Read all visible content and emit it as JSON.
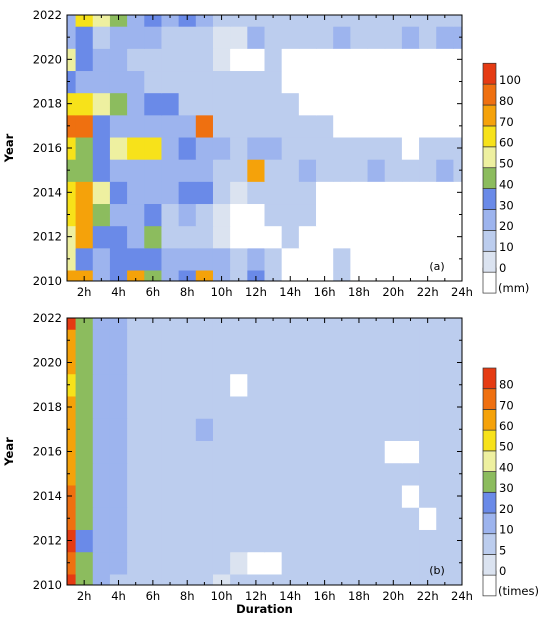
{
  "chart_data": [
    {
      "type": "heatmap",
      "panel_label": "(a)",
      "y_title": "Year",
      "x_ticks": [
        "2h",
        "4h",
        "6h",
        "8h",
        "10h",
        "12h",
        "14h",
        "16h",
        "18h",
        "20h",
        "22h",
        "24h"
      ],
      "y_ticks": [
        "2010",
        "2012",
        "2014",
        "2016",
        "2018",
        "2020",
        "2022"
      ],
      "x_range": [
        1,
        24
      ],
      "y_range": [
        2010,
        2022
      ],
      "colorbar_unit": "(mm)",
      "colorbar_labels": [
        "0",
        "10",
        "20",
        "30",
        "40",
        "50",
        "60",
        "70",
        "80",
        "100"
      ],
      "levels": [
        0,
        10,
        20,
        30,
        40,
        50,
        60,
        70,
        80,
        100
      ],
      "colors": [
        "#ffffff",
        "#dbe3f0",
        "#bccdee",
        "#9db4ee",
        "#6a8ae8",
        "#8cbc5e",
        "#eef0a0",
        "#f7e21a",
        "#f5a20a",
        "#ef7010",
        "#e53b13"
      ],
      "values": [
        [
          78,
          72,
          30,
          40,
          76,
          42,
          22,
          35,
          74,
          30,
          20,
          40,
          12,
          0,
          0,
          0,
          15,
          0,
          0,
          0,
          0,
          0,
          0,
          0
        ],
        [
          56,
          36,
          24,
          36,
          36,
          34,
          22,
          28,
          30,
          24,
          14,
          22,
          14,
          0,
          0,
          0,
          15,
          0,
          0,
          0,
          0,
          0,
          0,
          0
        ],
        [
          60,
          72,
          38,
          32,
          30,
          50,
          12,
          16,
          14,
          10,
          0,
          0,
          0,
          15,
          0,
          0,
          0,
          0,
          0,
          0,
          0,
          0,
          0,
          0
        ],
        [
          68,
          80,
          46,
          30,
          28,
          32,
          18,
          26,
          12,
          10,
          0,
          0,
          15,
          12,
          12,
          0,
          0,
          0,
          0,
          0,
          0,
          0,
          0,
          0
        ],
        [
          70,
          78,
          60,
          32,
          26,
          30,
          24,
          32,
          40,
          14,
          8,
          12,
          15,
          12,
          12,
          0,
          0,
          0,
          0,
          0,
          0,
          0,
          0,
          0
        ],
        [
          50,
          48,
          32,
          30,
          24,
          24,
          30,
          28,
          22,
          16,
          12,
          75,
          18,
          12,
          26,
          15,
          12,
          15,
          22,
          12,
          12,
          15,
          22,
          15
        ],
        [
          65,
          48,
          38,
          55,
          65,
          62,
          30,
          32,
          24,
          30,
          15,
          22,
          26,
          12,
          15,
          15,
          12,
          12,
          15,
          12,
          0,
          15,
          15,
          15
        ],
        [
          100,
          82,
          40,
          30,
          26,
          30,
          26,
          30,
          82,
          16,
          12,
          12,
          14,
          12,
          12,
          14,
          0,
          0,
          0,
          0,
          0,
          0,
          0,
          0
        ],
        [
          70,
          62,
          58,
          44,
          28,
          32,
          32,
          20,
          16,
          12,
          12,
          12,
          12,
          12,
          0,
          0,
          0,
          0,
          0,
          0,
          0,
          0,
          0,
          0
        ],
        [
          40,
          28,
          30,
          28,
          26,
          20,
          18,
          14,
          12,
          12,
          12,
          12,
          12,
          0,
          0,
          0,
          0,
          0,
          0,
          0,
          0,
          0,
          0,
          0
        ],
        [
          60,
          35,
          25,
          26,
          20,
          14,
          12,
          12,
          14,
          10,
          0,
          0,
          12,
          0,
          0,
          0,
          0,
          0,
          0,
          0,
          0,
          0,
          0,
          0
        ],
        [
          30,
          40,
          20,
          24,
          26,
          22,
          18,
          14,
          12,
          10,
          10,
          26,
          12,
          12,
          12,
          12,
          30,
          12,
          12,
          12,
          26,
          12,
          30,
          26
        ],
        [
          28,
          62,
          56,
          42,
          24,
          34,
          22,
          38,
          22,
          12,
          12,
          12,
          12,
          12,
          12,
          12,
          12,
          12,
          12,
          12,
          12,
          12,
          12,
          12
        ]
      ]
    },
    {
      "type": "heatmap",
      "panel_label": "(b)",
      "y_title": "Year",
      "x_title": "Duration",
      "x_ticks": [
        "2h",
        "4h",
        "6h",
        "8h",
        "10h",
        "12h",
        "14h",
        "16h",
        "18h",
        "20h",
        "22h",
        "24h"
      ],
      "y_ticks": [
        "2010",
        "2012",
        "2014",
        "2016",
        "2018",
        "2020",
        "2022"
      ],
      "x_range": [
        1,
        24
      ],
      "y_range": [
        2010,
        2022
      ],
      "colorbar_unit": "(times)",
      "colorbar_labels": [
        "0",
        "5",
        "10",
        "20",
        "30",
        "40",
        "50",
        "60",
        "70",
        "80"
      ],
      "levels": [
        0,
        5,
        10,
        20,
        30,
        40,
        50,
        60,
        70,
        80
      ],
      "colors": [
        "#ffffff",
        "#dbe3f0",
        "#bccdee",
        "#9db4ee",
        "#6a8ae8",
        "#8cbc5e",
        "#eef0a0",
        "#f7e21a",
        "#f5a20a",
        "#ef7010",
        "#e53b13"
      ],
      "values": [
        [
          85,
          36,
          14,
          10,
          7,
          7,
          7,
          6,
          7,
          5,
          6,
          6,
          6,
          6,
          6,
          6,
          6,
          6,
          6,
          6,
          6,
          6,
          6,
          6
        ],
        [
          74,
          32,
          16,
          12,
          8,
          6,
          6,
          6,
          6,
          6,
          5,
          0,
          0,
          6,
          6,
          6,
          6,
          6,
          6,
          6,
          6,
          6,
          6,
          6
        ],
        [
          90,
          30,
          16,
          12,
          9,
          7,
          6,
          6,
          6,
          6,
          6,
          6,
          6,
          6,
          6,
          6,
          6,
          6,
          6,
          6,
          6,
          6,
          6,
          6
        ],
        [
          75,
          34,
          18,
          12,
          10,
          7,
          6,
          6,
          6,
          6,
          6,
          6,
          6,
          6,
          6,
          6,
          6,
          6,
          6,
          6,
          6,
          0,
          6,
          6
        ],
        [
          72,
          36,
          16,
          12,
          10,
          6,
          6,
          6,
          6,
          6,
          6,
          6,
          6,
          6,
          6,
          6,
          6,
          6,
          6,
          6,
          0,
          6,
          6,
          6
        ],
        [
          65,
          38,
          18,
          13,
          10,
          8,
          6,
          6,
          6,
          6,
          6,
          6,
          6,
          6,
          6,
          6,
          6,
          6,
          6,
          6,
          6,
          6,
          6,
          6
        ],
        [
          68,
          40,
          16,
          12,
          10,
          7,
          6,
          6,
          6,
          6,
          6,
          6,
          6,
          6,
          6,
          6,
          6,
          6,
          6,
          0,
          0,
          6,
          6,
          6
        ],
        [
          66,
          36,
          16,
          12,
          10,
          6,
          6,
          6,
          12,
          6,
          6,
          6,
          6,
          6,
          6,
          6,
          6,
          6,
          6,
          6,
          6,
          6,
          6,
          6
        ],
        [
          62,
          36,
          16,
          12,
          10,
          7,
          6,
          6,
          6,
          6,
          6,
          6,
          6,
          6,
          6,
          6,
          6,
          6,
          6,
          6,
          6,
          6,
          6,
          6
        ],
        [
          58,
          38,
          16,
          12,
          10,
          6,
          6,
          6,
          6,
          6,
          0,
          6,
          6,
          6,
          6,
          6,
          6,
          6,
          6,
          6,
          6,
          6,
          6,
          6
        ],
        [
          62,
          34,
          16,
          12,
          10,
          7,
          6,
          6,
          6,
          6,
          6,
          6,
          6,
          6,
          6,
          6,
          6,
          6,
          6,
          6,
          6,
          6,
          6,
          6
        ],
        [
          64,
          36,
          16,
          12,
          9,
          7,
          6,
          6,
          6,
          6,
          6,
          6,
          6,
          6,
          6,
          6,
          6,
          6,
          6,
          6,
          6,
          6,
          6,
          6
        ],
        [
          82,
          36,
          16,
          12,
          8,
          7,
          6,
          6,
          6,
          6,
          6,
          6,
          6,
          6,
          6,
          6,
          6,
          6,
          6,
          6,
          6,
          6,
          6,
          6
        ]
      ]
    }
  ]
}
